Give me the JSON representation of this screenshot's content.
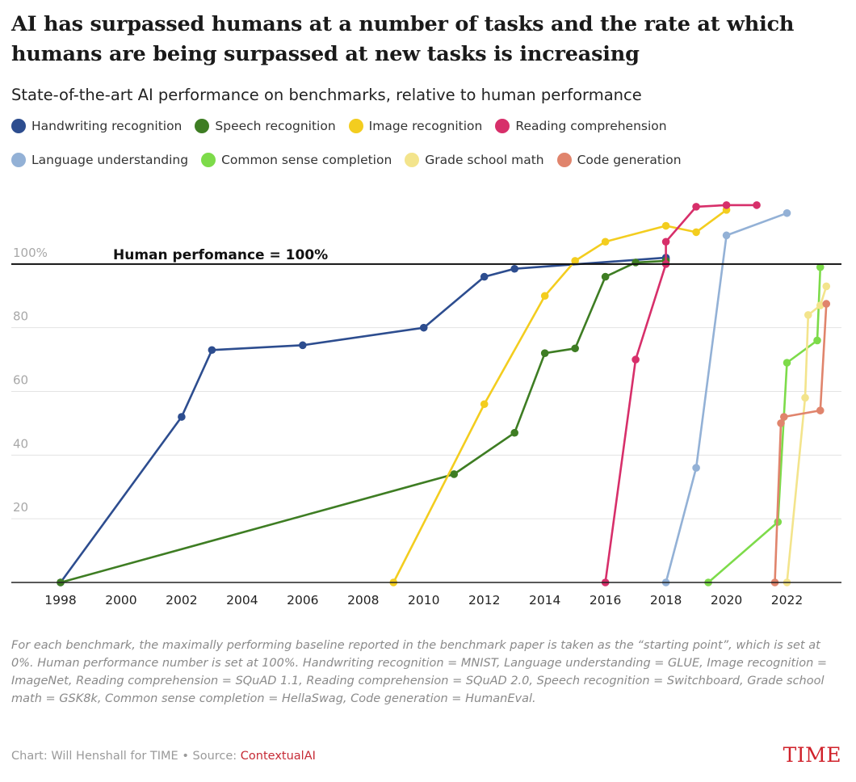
{
  "chart_data": {
    "type": "line",
    "title": "AI has surpassed humans at a number of tasks and the rate at which humans are being surpassed at new tasks is increasing",
    "subtitle": "State-of-the-art AI performance on benchmarks, relative to human performance",
    "xlim": [
      1996.8,
      2023.8
    ],
    "ylim": [
      0,
      120
    ],
    "x_ticks": [
      "1998",
      "2000",
      "2002",
      "2004",
      "2006",
      "2008",
      "2010",
      "2012",
      "2014",
      "2016",
      "2018",
      "2020",
      "2022"
    ],
    "y_ticks": [
      {
        "value": 20,
        "label": "20"
      },
      {
        "value": 40,
        "label": "40"
      },
      {
        "value": 60,
        "label": "60"
      },
      {
        "value": 80,
        "label": "80"
      },
      {
        "value": 100,
        "label": "100%"
      }
    ],
    "grid": true,
    "legend_position": "top-left",
    "reference_line": {
      "value": 100,
      "label": "Human perfomance = 100%"
    },
    "series": [
      {
        "name": "Handwriting recognition",
        "color": "#2d4d8f",
        "points": [
          [
            1998,
            0
          ],
          [
            2002,
            52
          ],
          [
            2003,
            73
          ],
          [
            2006,
            74.5
          ],
          [
            2010,
            80
          ],
          [
            2012,
            96
          ],
          [
            2013,
            98.5
          ],
          [
            2018,
            102
          ],
          [
            2018,
            101.5
          ]
        ]
      },
      {
        "name": "Speech recognition",
        "color": "#3e7d23",
        "points": [
          [
            1998,
            0
          ],
          [
            2011,
            34
          ],
          [
            2013,
            47
          ],
          [
            2014,
            72
          ],
          [
            2015,
            73.5
          ],
          [
            2016,
            96
          ],
          [
            2017,
            100.5
          ],
          [
            2018,
            101
          ]
        ]
      },
      {
        "name": "Image recognition",
        "color": "#f3cd1f",
        "points": [
          [
            2009,
            0
          ],
          [
            2012,
            56
          ],
          [
            2014,
            90
          ],
          [
            2015,
            101
          ],
          [
            2016,
            107
          ],
          [
            2018,
            112
          ],
          [
            2019,
            110
          ],
          [
            2020,
            117
          ]
        ]
      },
      {
        "name": "Reading comprehension",
        "color": "#d72f6a",
        "points": [
          [
            2016,
            0
          ],
          [
            2017,
            70
          ],
          [
            2018,
            100
          ],
          [
            2018,
            107
          ],
          [
            2019,
            118
          ],
          [
            2020,
            118.5
          ],
          [
            2021,
            118.5
          ]
        ]
      },
      {
        "name": "Language understanding",
        "color": "#93b1d6",
        "points": [
          [
            2018,
            0
          ],
          [
            2019,
            36
          ],
          [
            2020,
            109
          ],
          [
            2022,
            116
          ]
        ]
      },
      {
        "name": "Common sense completion",
        "color": "#7ddb4a",
        "points": [
          [
            2019.4,
            0
          ],
          [
            2021.7,
            19
          ],
          [
            2022,
            69
          ],
          [
            2023,
            76
          ],
          [
            2023.1,
            99
          ]
        ]
      },
      {
        "name": "Grade school math",
        "color": "#f3e48c",
        "points": [
          [
            2022,
            0
          ],
          [
            2022.6,
            58
          ],
          [
            2022.7,
            84
          ],
          [
            2023.1,
            87
          ],
          [
            2023.3,
            93
          ]
        ]
      },
      {
        "name": "Code generation",
        "color": "#e0846c",
        "points": [
          [
            2021.6,
            0
          ],
          [
            2021.8,
            50
          ],
          [
            2021.9,
            52
          ],
          [
            2023.1,
            54
          ],
          [
            2023.3,
            87.5
          ]
        ]
      }
    ]
  },
  "note": "For each benchmark, the maximally performing baseline reported in the benchmark paper is taken as the “starting point”, which is set at 0%. Human performance number is set at 100%. Handwriting recognition = MNIST, Language understanding = GLUE, Image recognition = ImageNet, Reading comprehension = SQuAD 1.1, Reading comprehension = SQuAD 2.0, Speech recognition = Switchboard, Grade school math = GSK8k, Common sense completion = HellaSwag, Code generation = HumanEval.",
  "credit": {
    "text": "Chart: Will Henshall for TIME • Source: ",
    "source": "ContextualAI"
  },
  "logo": "TIME"
}
